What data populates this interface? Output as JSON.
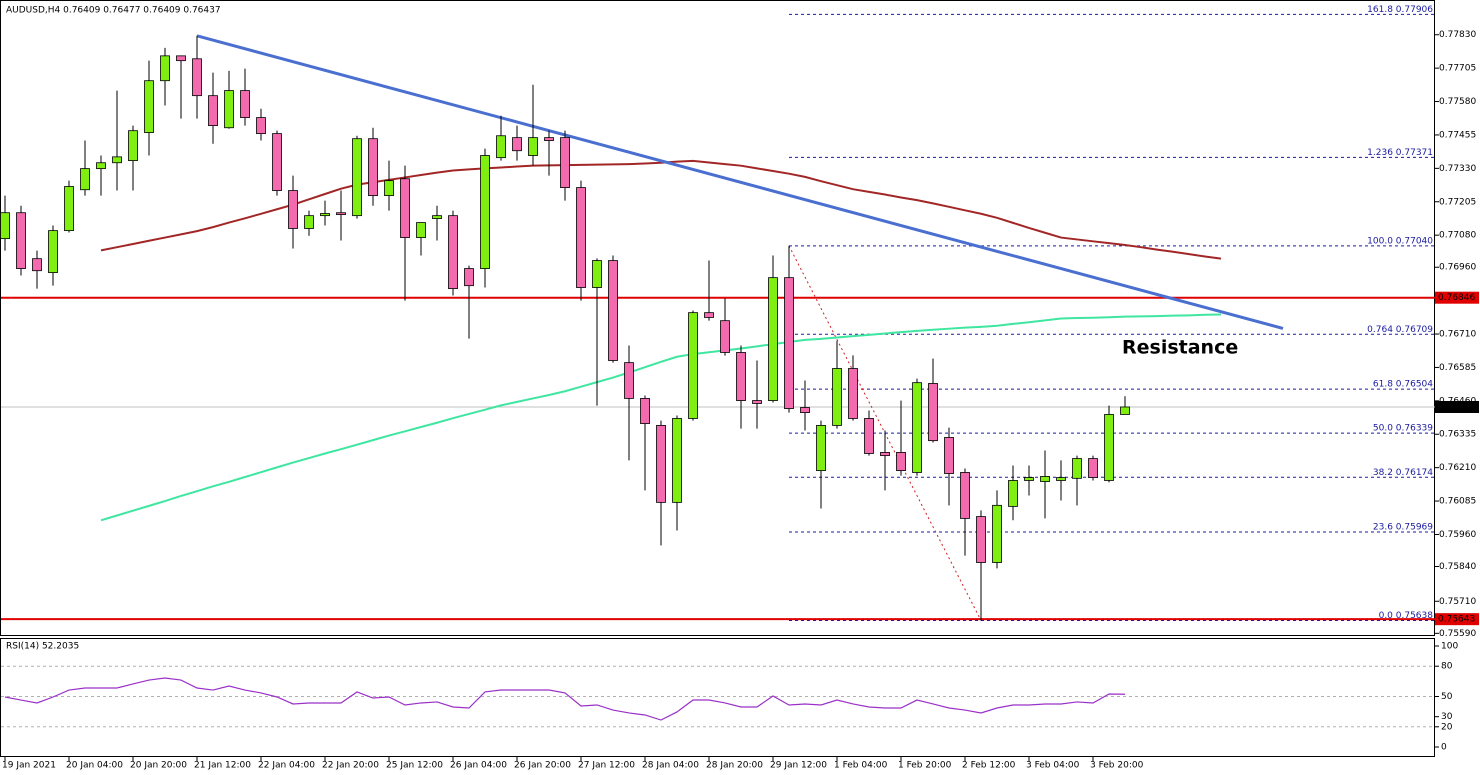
{
  "chart_data": {
    "type": "candlestick",
    "title": "AUDUSD,H4  0.76409 0.76477 0.76409 0.76437",
    "categories": [
      "19 Jan 2021",
      null,
      null,
      null,
      "20 Jan 04:00",
      null,
      null,
      null,
      "20 Jan 20:00",
      null,
      null,
      null,
      "21 Jan 12:00",
      null,
      null,
      null,
      "22 Jan 04:00",
      null,
      null,
      null,
      "22 Jan 20:00",
      null,
      null,
      null,
      "25 Jan 12:00",
      null,
      null,
      null,
      "26 Jan 04:00",
      null,
      null,
      null,
      "26 Jan 20:00",
      null,
      null,
      null,
      "27 Jan 12:00",
      null,
      null,
      null,
      "28 Jan 04:00",
      null,
      null,
      null,
      "28 Jan 20:00",
      null,
      null,
      null,
      "29 Jan 12:00",
      null,
      null,
      null,
      "1 Feb 04:00",
      null,
      null,
      null,
      "1 Feb 20:00",
      null,
      null,
      null,
      "2 Feb 12:00",
      null,
      null,
      null,
      "3 Feb 04:00",
      null,
      null,
      null,
      "3 Feb 20:00",
      null,
      null
    ],
    "open": [
      0.77067,
      0.77164,
      0.76992,
      0.7694,
      0.77097,
      0.7725,
      0.77329,
      0.77351,
      0.77359,
      0.77464,
      0.77658,
      0.77751,
      0.7774,
      0.77602,
      0.77482,
      0.77621,
      0.7752,
      0.7746,
      0.77247,
      0.77105,
      0.77153,
      0.77164,
      0.77153,
      0.77441,
      0.77228,
      0.77291,
      0.77071,
      0.77142,
      0.77153,
      0.76955,
      0.76955,
      0.7737,
      0.77445,
      0.77378,
      0.77445,
      0.77445,
      0.77258,
      0.76884,
      0.76985,
      0.76603,
      0.76469,
      0.76368,
      0.7608,
      0.76394,
      0.7679,
      0.7676,
      0.76641,
      0.76461,
      0.76461,
      0.76921,
      0.76435,
      0.76199,
      0.76368,
      0.76581,
      0.76394,
      0.76267,
      0.76267,
      0.76192,
      0.76525,
      0.76323,
      0.76192,
      0.76027,
      0.75855,
      0.76065,
      0.76162,
      0.76158,
      0.76162,
      0.7617,
      0.76244,
      0.76162,
      0.76409
    ],
    "high": [
      0.77228,
      0.7719,
      0.77022,
      0.77116,
      0.77284,
      0.77434,
      0.77378,
      0.77621,
      0.7749,
      0.77733,
      0.77781,
      0.77751,
      0.77826,
      0.77688,
      0.77695,
      0.77703,
      0.77553,
      0.77471,
      0.77303,
      0.77172,
      0.77209,
      0.77247,
      0.77452,
      0.77482,
      0.77359,
      0.7734,
      0.77127,
      0.7719,
      0.77172,
      0.76966,
      0.77404,
      0.77527,
      0.7749,
      0.77643,
      0.77471,
      0.77471,
      0.77284,
      0.76993,
      0.77004,
      0.76667,
      0.7648,
      0.76386,
      0.76405,
      0.76798,
      0.76985,
      0.76843,
      0.76667,
      0.76611,
      0.77004,
      0.7704,
      0.76536,
      0.76386,
      0.76685,
      0.7663,
      0.76424,
      0.76349,
      0.76461,
      0.76543,
      0.76618,
      0.7636,
      0.76207,
      0.7605,
      0.76125,
      0.76218,
      0.76218,
      0.76274,
      0.76237,
      0.76255,
      0.76255,
      0.76442,
      0.76477
    ],
    "low": [
      0.77022,
      0.76929,
      0.7688,
      0.76891,
      0.7709,
      0.77228,
      0.77228,
      0.77247,
      0.77247,
      0.77378,
      0.77565,
      0.77516,
      0.77516,
      0.77422,
      0.77478,
      0.7749,
      0.77434,
      0.77228,
      0.7703,
      0.77078,
      0.77116,
      0.7706,
      0.77142,
      0.7719,
      0.77172,
      0.76835,
      0.77004,
      0.7706,
      0.76854,
      0.76693,
      0.76884,
      0.77359,
      0.77359,
      0.7734,
      0.77303,
      0.77209,
      0.76835,
      0.76442,
      0.76603,
      0.76237,
      0.76125,
      0.75919,
      0.75975,
      0.76386,
      0.7676,
      0.76629,
      0.76356,
      0.76356,
      0.76454,
      0.76416,
      0.76349,
      0.76057,
      0.76356,
      0.76386,
      0.76255,
      0.76125,
      0.7618,
      0.7618,
      0.76304,
      0.76069,
      0.75881,
      0.75638,
      0.75833,
      0.76013,
      0.76106,
      0.7602,
      0.76087,
      0.76069,
      0.76162,
      0.76155,
      0.76409
    ],
    "close": [
      0.77164,
      0.76955,
      0.76947,
      0.77097,
      0.77262,
      0.77329,
      0.77351,
      0.77373,
      0.77471,
      0.77658,
      0.77751,
      0.77733,
      0.77602,
      0.7749,
      0.77621,
      0.7752,
      0.7746,
      0.77247,
      0.77105,
      0.77153,
      0.77161,
      0.77157,
      0.77441,
      0.77228,
      0.77284,
      0.77071,
      0.77127,
      0.77153,
      0.7688,
      0.76891,
      0.77378,
      0.77452,
      0.77396,
      0.77445,
      0.77434,
      0.77258,
      0.76884,
      0.76985,
      0.76611,
      0.76469,
      0.76375,
      0.7608,
      0.76394,
      0.7679,
      0.76772,
      0.76641,
      0.76461,
      0.7645,
      0.76921,
      0.76431,
      0.76416,
      0.76368,
      0.76581,
      0.76394,
      0.76263,
      0.76255,
      0.76199,
      0.76528,
      0.76311,
      0.76188,
      0.7602,
      0.75855,
      0.76069,
      0.76162,
      0.76173,
      0.76177,
      0.76173,
      0.76244,
      0.76173,
      0.76409,
      0.76437
    ],
    "colors": {
      "up": "#80ee10",
      "down": "#f36aae"
    },
    "ylim": [
      0.7558,
      0.7796
    ],
    "yticks": [
      {
        "value": 0.7783,
        "label": "0.77830"
      },
      0.77705,
      {
        "value": 0.7758,
        "label": "0.77580"
      },
      0.77455,
      {
        "value": 0.7733,
        "label": "0.77330"
      },
      0.77205,
      {
        "value": 0.7708,
        "label": "0.77080"
      },
      {
        "value": 0.7696,
        "label": "0.76960"
      },
      {
        "value": 0.7671,
        "label": "0.76710"
      },
      0.76585,
      {
        "value": 0.7646,
        "label": "0.76460"
      },
      0.76335,
      {
        "value": 0.7621,
        "label": "0.76210"
      },
      0.76085,
      {
        "value": 0.7596,
        "label": "0.75960"
      },
      {
        "value": 0.7584,
        "label": "0.75840"
      },
      {
        "value": 0.7571,
        "label": "0.75710"
      },
      {
        "value": 0.7559,
        "label": "0.75590"
      }
    ],
    "moving_averages": [
      {
        "color": "#a32626",
        "shift": 6,
        "values": [
          0.77023,
          0.77035,
          0.77047,
          0.77059,
          0.77071,
          0.77083,
          0.77095,
          0.7711,
          0.77127,
          0.77143,
          0.7716,
          0.77177,
          0.77194,
          0.77214,
          0.77234,
          0.77254,
          0.77269,
          0.77278,
          0.77287,
          0.77296,
          0.77305,
          0.77314,
          0.77322,
          0.77326,
          0.7733,
          0.77333,
          0.77337,
          0.7734,
          0.77341,
          0.77342,
          0.77343,
          0.77344,
          0.77345,
          0.77346,
          0.77348,
          0.77351,
          0.77355,
          0.77358,
          0.77352,
          0.77346,
          0.7734,
          0.7733,
          0.7732,
          0.7731,
          0.77298,
          0.77282,
          0.77267,
          0.77252,
          0.77242,
          0.77232,
          0.77221,
          0.77211,
          0.77199,
          0.77186,
          0.77173,
          0.7716,
          0.77145,
          0.77126,
          0.77107,
          0.77089,
          0.77071,
          0.77064,
          0.77057,
          0.7705,
          0.77043,
          0.77035,
          0.77026,
          0.77018,
          0.77009,
          0.77,
          0.76992
        ]
      },
      {
        "color": "#3ee6a0",
        "shift": 6,
        "values": [
          0.76013,
          0.76031,
          0.76049,
          0.76067,
          0.76085,
          0.76104,
          0.76122,
          0.7614,
          0.76157,
          0.76175,
          0.76193,
          0.76211,
          0.76229,
          0.76246,
          0.76263,
          0.76279,
          0.76296,
          0.76313,
          0.7633,
          0.76346,
          0.76362,
          0.76378,
          0.76395,
          0.76411,
          0.76427,
          0.76443,
          0.76456,
          0.76469,
          0.76482,
          0.76496,
          0.76513,
          0.7653,
          0.76547,
          0.76566,
          0.76586,
          0.76606,
          0.76625,
          0.76635,
          0.76642,
          0.76649,
          0.76656,
          0.76664,
          0.76672,
          0.7668,
          0.76688,
          0.76692,
          0.76697,
          0.76702,
          0.76707,
          0.76712,
          0.76717,
          0.76722,
          0.76726,
          0.7673,
          0.76734,
          0.76737,
          0.76741,
          0.76748,
          0.76754,
          0.76761,
          0.76768,
          0.7677,
          0.76771,
          0.76773,
          0.76775,
          0.76776,
          0.76777,
          0.76779,
          0.7678,
          0.76782,
          0.76783
        ]
      }
    ],
    "trendline": {
      "color": "#4a6fd0",
      "values": [
        0.77826,
        0.76731
      ]
    },
    "horizontal_lines": [
      {
        "value": 0.76846,
        "color": "#e00000"
      },
      {
        "value": 0.75643,
        "color": "#e00000"
      }
    ],
    "price_line": {
      "value": 0.76437,
      "color": "#c0c0c0"
    },
    "fibonacci": {
      "color": "#1a1aa0",
      "levels": [
        {
          "value": 0.77906,
          "label": "161.8 0.77906"
        },
        {
          "value": 0.77371,
          "label": "1.236 0.77371"
        },
        {
          "value": 0.7704,
          "label": "100.0 0.77040"
        },
        {
          "value": 0.76709,
          "label": "0.764 0.76709"
        },
        {
          "value": 0.76504,
          "label": "61.8 0.76504"
        },
        {
          "value": 0.76339,
          "label": "50.0 0.76339"
        },
        {
          "value": 0.76174,
          "label": "38.2 0.76174"
        },
        {
          "value": 0.75969,
          "label": "23.6 0.75969"
        },
        {
          "value": 0.75638,
          "label": "0.0 0.75638"
        }
      ]
    },
    "annotation": {
      "text": "Resistance",
      "color": "#2aa02a"
    },
    "rsi": {
      "title": "RSI(14) 52.2035",
      "color": "#9b30c8",
      "ylim": [
        0,
        100
      ],
      "yticks": [
        100,
        80,
        50,
        30,
        20,
        0
      ],
      "levels": [
        80,
        50,
        20
      ],
      "values": [
        49.5,
        46.5,
        43.6,
        49.5,
        56.4,
        58.4,
        58.4,
        58.4,
        62.4,
        66.3,
        68.3,
        66.3,
        58.4,
        56.4,
        60.4,
        56.4,
        53.5,
        49.5,
        42.6,
        43.6,
        43.6,
        43.6,
        54.5,
        48.5,
        49.5,
        41.6,
        43.6,
        44.6,
        39.6,
        38.6,
        54.5,
        56.4,
        56.4,
        56.4,
        56.4,
        53.5,
        40.6,
        41.6,
        36.6,
        33.7,
        31.7,
        26.7,
        34.7,
        46.5,
        46.5,
        43.6,
        39.6,
        39.6,
        50.5,
        41.6,
        42.6,
        41.6,
        46.5,
        42.6,
        39.6,
        38.6,
        38.6,
        46.5,
        42.6,
        38.6,
        36.6,
        33.7,
        38.6,
        41.6,
        41.6,
        42.6,
        42.6,
        44.6,
        43.6,
        52.5,
        52.2035
      ]
    }
  }
}
